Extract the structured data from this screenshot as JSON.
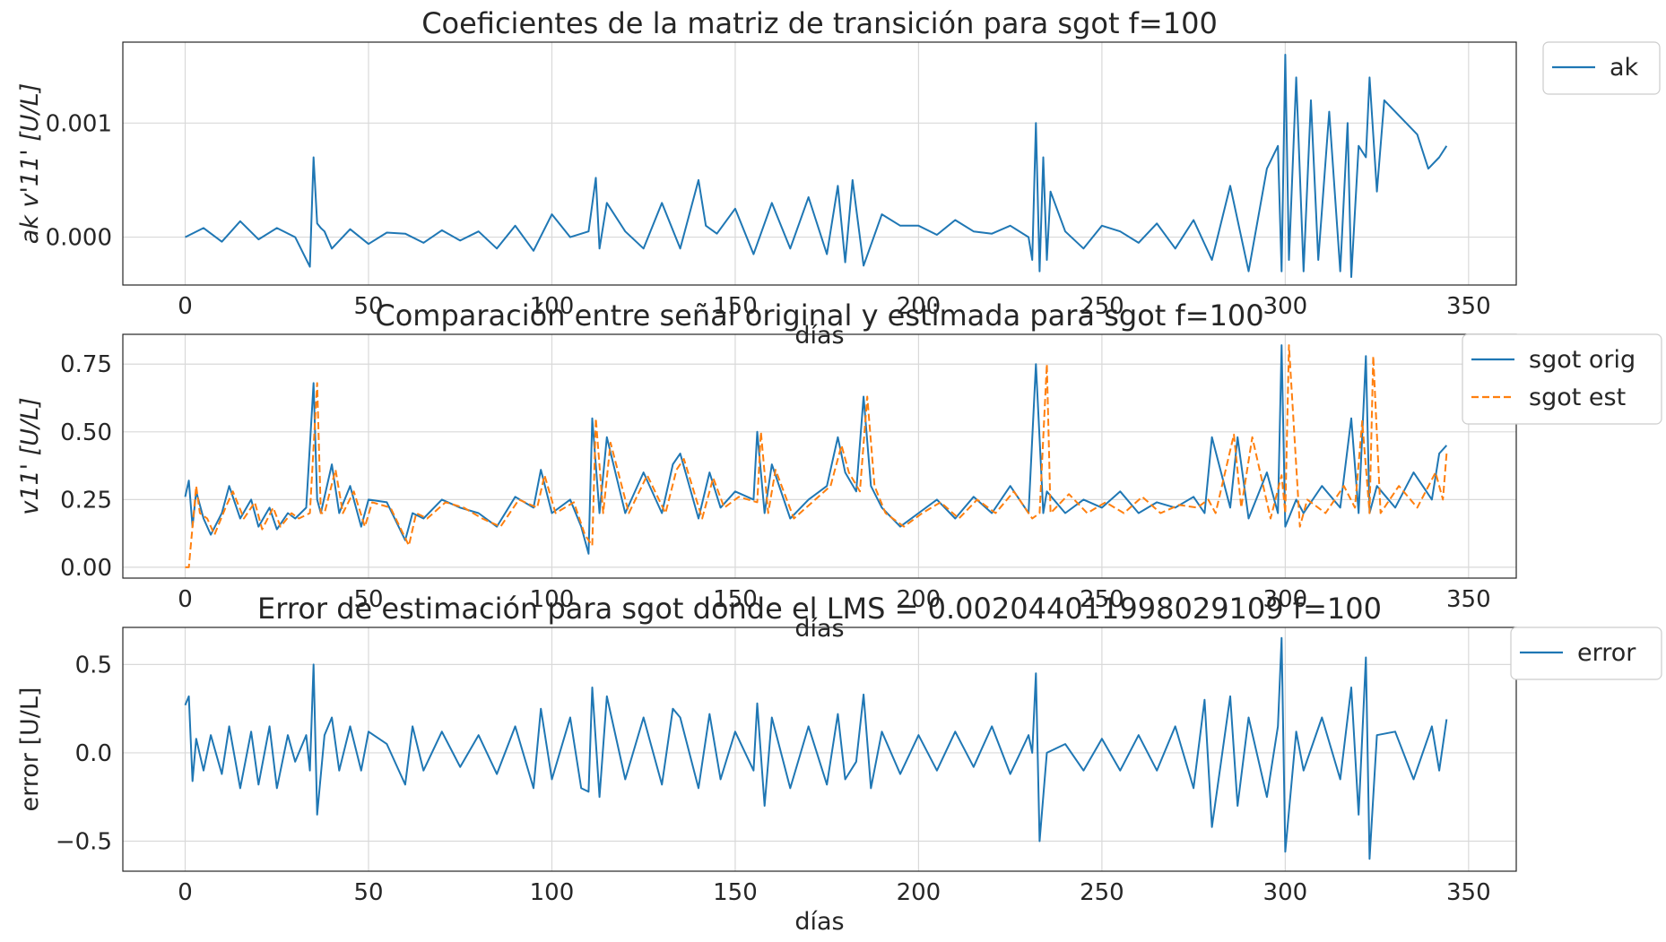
{
  "chart_data": [
    {
      "type": "line",
      "title": "Coeficientes de la matriz de transición para sgot f=100",
      "xlabel": "días",
      "ylabel": "ak v'11' [U/L]",
      "xlim": [
        -17,
        363
      ],
      "ylim": [
        -0.00042,
        0.00171
      ],
      "xticks": [
        0,
        50,
        100,
        150,
        200,
        250,
        300,
        350
      ],
      "xtick_labels": [
        "0",
        "50",
        "100",
        "150",
        "200",
        "250",
        "300",
        "350"
      ],
      "yticks": [
        0.0,
        0.001
      ],
      "ytick_labels": [
        "0.000",
        "0.001"
      ],
      "grid": true,
      "legend": "outside-top-right",
      "series": [
        {
          "name": "ak",
          "color": "#1f77b4",
          "style": "solid",
          "x": [
            0,
            5,
            10,
            15,
            20,
            25,
            30,
            34,
            35,
            36,
            37,
            38,
            40,
            45,
            50,
            55,
            60,
            65,
            70,
            75,
            80,
            85,
            90,
            95,
            100,
            105,
            110,
            112,
            113,
            115,
            120,
            125,
            130,
            135,
            140,
            142,
            145,
            150,
            155,
            160,
            165,
            170,
            175,
            178,
            180,
            182,
            185,
            190,
            195,
            200,
            205,
            210,
            215,
            220,
            225,
            230,
            231,
            232,
            233,
            234,
            235,
            236,
            240,
            245,
            250,
            255,
            260,
            265,
            270,
            275,
            280,
            285,
            290,
            295,
            298,
            299,
            300,
            301,
            303,
            305,
            307,
            309,
            312,
            315,
            317,
            318,
            320,
            322,
            323,
            325,
            327,
            330,
            333,
            336,
            339,
            342,
            344
          ],
          "y": [
            0.0,
            8e-05,
            -4e-05,
            0.00014,
            -2e-05,
            8e-05,
            0.0,
            -0.00026,
            0.0007,
            0.00012,
            8e-05,
            5e-05,
            -0.0001,
            7e-05,
            -6e-05,
            4e-05,
            3e-05,
            -5e-05,
            6e-05,
            -3e-05,
            5e-05,
            -0.0001,
            0.0001,
            -0.00012,
            0.0002,
            0.0,
            5e-05,
            0.00052,
            -0.0001,
            0.0003,
            5e-05,
            -0.0001,
            0.0003,
            -0.0001,
            0.0005,
            0.0001,
            3e-05,
            0.00025,
            -0.00015,
            0.0003,
            -0.0001,
            0.00035,
            -0.00015,
            0.00045,
            -0.00022,
            0.0005,
            -0.00025,
            0.0002,
            0.0001,
            0.0001,
            2e-05,
            0.00015,
            5e-05,
            3e-05,
            0.0001,
            0.0,
            -0.0002,
            0.001,
            -0.0003,
            0.0007,
            -0.0002,
            0.0004,
            5e-05,
            -0.0001,
            0.0001,
            5e-05,
            -5e-05,
            0.00012,
            -0.0001,
            0.00015,
            -0.0002,
            0.00045,
            -0.0003,
            0.0006,
            0.0008,
            -0.0003,
            0.0016,
            -0.0002,
            0.0014,
            -0.0003,
            0.0012,
            -0.0002,
            0.0011,
            -0.0003,
            0.001,
            -0.00035,
            0.0008,
            0.0007,
            0.0014,
            0.0004,
            0.0012,
            0.0011,
            0.001,
            0.0009,
            0.0006,
            0.0007,
            0.0008
          ]
        }
      ]
    },
    {
      "type": "line",
      "title": "Comparación entre señal original y estimada para sgot f=100",
      "xlabel": "días",
      "ylabel": "v11' [U/L]",
      "xlim": [
        -17,
        363
      ],
      "ylim": [
        -0.04,
        0.86
      ],
      "xticks": [
        0,
        50,
        100,
        150,
        200,
        250,
        300,
        350
      ],
      "xtick_labels": [
        "0",
        "50",
        "100",
        "150",
        "200",
        "250",
        "300",
        "350"
      ],
      "yticks": [
        0.0,
        0.25,
        0.5,
        0.75
      ],
      "ytick_labels": [
        "0.00",
        "0.25",
        "0.50",
        "0.75"
      ],
      "grid": true,
      "legend": "outside-top-right",
      "series": [
        {
          "name": "sgot orig",
          "color": "#1f77b4",
          "style": "solid",
          "x": [
            0,
            1,
            2,
            3,
            5,
            7,
            10,
            12,
            15,
            18,
            20,
            23,
            25,
            28,
            30,
            33,
            35,
            36,
            37,
            40,
            42,
            45,
            48,
            50,
            55,
            60,
            62,
            65,
            70,
            75,
            80,
            85,
            90,
            95,
            97,
            100,
            105,
            108,
            110,
            111,
            113,
            115,
            120,
            125,
            130,
            133,
            135,
            140,
            143,
            146,
            150,
            155,
            156,
            158,
            160,
            165,
            170,
            175,
            178,
            180,
            183,
            185,
            187,
            190,
            195,
            200,
            205,
            210,
            215,
            220,
            225,
            230,
            232,
            234,
            235,
            240,
            245,
            250,
            255,
            260,
            265,
            270,
            275,
            278,
            280,
            285,
            287,
            290,
            295,
            298,
            299,
            300,
            303,
            305,
            310,
            315,
            318,
            320,
            322,
            323,
            325,
            330,
            335,
            340,
            342,
            344
          ],
          "y": [
            0.26,
            0.32,
            0.15,
            0.28,
            0.18,
            0.12,
            0.2,
            0.3,
            0.18,
            0.25,
            0.15,
            0.22,
            0.14,
            0.2,
            0.18,
            0.22,
            0.68,
            0.25,
            0.2,
            0.38,
            0.2,
            0.3,
            0.15,
            0.25,
            0.24,
            0.1,
            0.2,
            0.18,
            0.25,
            0.22,
            0.2,
            0.15,
            0.26,
            0.22,
            0.36,
            0.2,
            0.25,
            0.15,
            0.05,
            0.55,
            0.2,
            0.48,
            0.2,
            0.35,
            0.2,
            0.38,
            0.42,
            0.18,
            0.35,
            0.22,
            0.28,
            0.25,
            0.5,
            0.2,
            0.38,
            0.18,
            0.25,
            0.3,
            0.48,
            0.35,
            0.28,
            0.63,
            0.3,
            0.22,
            0.15,
            0.2,
            0.25,
            0.18,
            0.26,
            0.2,
            0.3,
            0.2,
            0.75,
            0.2,
            0.28,
            0.2,
            0.25,
            0.22,
            0.28,
            0.2,
            0.24,
            0.22,
            0.26,
            0.2,
            0.48,
            0.22,
            0.48,
            0.18,
            0.35,
            0.2,
            0.82,
            0.15,
            0.25,
            0.2,
            0.3,
            0.22,
            0.55,
            0.2,
            0.78,
            0.2,
            0.3,
            0.22,
            0.35,
            0.25,
            0.42,
            0.45
          ]
        },
        {
          "name": "sgot est",
          "color": "#ff7f0e",
          "style": "dashed",
          "x": [
            0,
            1,
            2,
            3,
            4,
            6,
            8,
            11,
            13,
            16,
            19,
            21,
            24,
            26,
            29,
            31,
            34,
            36,
            37,
            38,
            41,
            43,
            46,
            49,
            51,
            56,
            61,
            63,
            66,
            71,
            76,
            81,
            86,
            91,
            96,
            98,
            101,
            106,
            109,
            111,
            112,
            114,
            116,
            121,
            126,
            131,
            134,
            136,
            141,
            144,
            147,
            151,
            156,
            157,
            159,
            161,
            166,
            171,
            176,
            179,
            181,
            184,
            186,
            188,
            191,
            196,
            201,
            206,
            211,
            216,
            221,
            226,
            231,
            233,
            235,
            236,
            241,
            246,
            251,
            256,
            261,
            266,
            271,
            276,
            279,
            281,
            286,
            288,
            291,
            296,
            299,
            300,
            301,
            304,
            306,
            311,
            316,
            319,
            321,
            323,
            324,
            326,
            331,
            336,
            341,
            343,
            344
          ],
          "y": [
            0.0,
            0.0,
            0.15,
            0.3,
            0.2,
            0.18,
            0.12,
            0.22,
            0.28,
            0.18,
            0.24,
            0.14,
            0.22,
            0.15,
            0.2,
            0.18,
            0.2,
            0.68,
            0.2,
            0.2,
            0.36,
            0.2,
            0.28,
            0.15,
            0.24,
            0.22,
            0.08,
            0.2,
            0.18,
            0.24,
            0.22,
            0.18,
            0.15,
            0.25,
            0.22,
            0.34,
            0.2,
            0.24,
            0.12,
            0.08,
            0.55,
            0.2,
            0.46,
            0.2,
            0.34,
            0.2,
            0.36,
            0.4,
            0.18,
            0.33,
            0.22,
            0.26,
            0.24,
            0.5,
            0.2,
            0.36,
            0.18,
            0.24,
            0.3,
            0.45,
            0.35,
            0.28,
            0.63,
            0.3,
            0.2,
            0.15,
            0.2,
            0.24,
            0.18,
            0.25,
            0.2,
            0.28,
            0.18,
            0.2,
            0.75,
            0.2,
            0.27,
            0.2,
            0.24,
            0.2,
            0.26,
            0.2,
            0.23,
            0.22,
            0.25,
            0.2,
            0.49,
            0.22,
            0.48,
            0.18,
            0.34,
            0.2,
            0.82,
            0.15,
            0.25,
            0.2,
            0.3,
            0.22,
            0.54,
            0.2,
            0.78,
            0.2,
            0.3,
            0.22,
            0.35,
            0.25,
            0.42
          ]
        }
      ]
    },
    {
      "type": "line",
      "title": "Error de estimación para sgot donde el LMS = 0.0020440119980291​09 f=100",
      "xlabel": "días",
      "ylabel": "error  [U/L]",
      "xlim": [
        -17,
        363
      ],
      "ylim": [
        -0.67,
        0.71
      ],
      "xticks": [
        0,
        50,
        100,
        150,
        200,
        250,
        300,
        350
      ],
      "xtick_labels": [
        "0",
        "50",
        "100",
        "150",
        "200",
        "250",
        "300",
        "350"
      ],
      "yticks": [
        -0.5,
        0.0,
        0.5
      ],
      "ytick_labels": [
        "−0.5",
        "0.0",
        "0.5"
      ],
      "grid": true,
      "legend": "outside-top-right",
      "series": [
        {
          "name": "error",
          "color": "#1f77b4",
          "style": "solid",
          "x": [
            0,
            1,
            2,
            3,
            5,
            7,
            10,
            12,
            15,
            18,
            20,
            23,
            25,
            28,
            30,
            33,
            34,
            35,
            36,
            38,
            40,
            42,
            45,
            48,
            50,
            55,
            60,
            62,
            65,
            70,
            75,
            80,
            85,
            90,
            95,
            97,
            100,
            105,
            108,
            110,
            111,
            113,
            115,
            120,
            125,
            130,
            133,
            135,
            140,
            143,
            146,
            150,
            155,
            156,
            158,
            160,
            165,
            170,
            175,
            178,
            180,
            183,
            185,
            187,
            190,
            195,
            200,
            205,
            210,
            215,
            220,
            225,
            230,
            231,
            232,
            233,
            235,
            240,
            245,
            250,
            255,
            260,
            265,
            270,
            275,
            278,
            280,
            285,
            287,
            290,
            295,
            298,
            299,
            300,
            303,
            305,
            310,
            315,
            318,
            320,
            322,
            323,
            325,
            330,
            335,
            340,
            342,
            344
          ],
          "y": [
            0.27,
            0.32,
            -0.16,
            0.08,
            -0.1,
            0.1,
            -0.12,
            0.15,
            -0.2,
            0.12,
            -0.18,
            0.15,
            -0.2,
            0.1,
            -0.05,
            0.1,
            -0.1,
            0.5,
            -0.35,
            0.1,
            0.2,
            -0.1,
            0.15,
            -0.1,
            0.12,
            0.05,
            -0.18,
            0.15,
            -0.1,
            0.12,
            -0.08,
            0.1,
            -0.12,
            0.15,
            -0.2,
            0.25,
            -0.15,
            0.2,
            -0.2,
            -0.22,
            0.37,
            -0.25,
            0.32,
            -0.15,
            0.2,
            -0.18,
            0.25,
            0.2,
            -0.2,
            0.22,
            -0.15,
            0.12,
            -0.1,
            0.28,
            -0.3,
            0.2,
            -0.2,
            0.15,
            -0.18,
            0.22,
            -0.15,
            -0.05,
            0.33,
            -0.2,
            0.12,
            -0.12,
            0.1,
            -0.1,
            0.12,
            -0.08,
            0.15,
            -0.12,
            0.1,
            0.0,
            0.45,
            -0.5,
            0.0,
            0.05,
            -0.1,
            0.08,
            -0.1,
            0.1,
            -0.1,
            0.15,
            -0.2,
            0.3,
            -0.42,
            0.32,
            -0.3,
            0.2,
            -0.25,
            0.15,
            0.65,
            -0.56,
            0.12,
            -0.1,
            0.2,
            -0.15,
            0.37,
            -0.35,
            0.54,
            -0.6,
            0.1,
            0.12,
            -0.15,
            0.15,
            -0.1,
            0.19
          ]
        }
      ]
    }
  ]
}
